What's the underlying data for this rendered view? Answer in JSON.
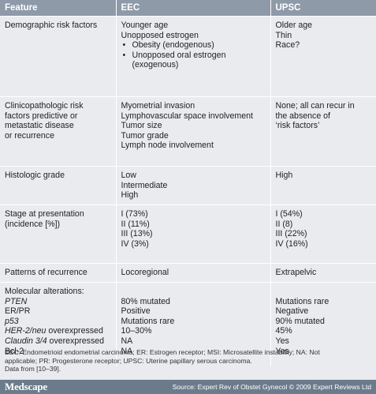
{
  "header": {
    "col1": "Feature",
    "col2": "EEC",
    "col3": "UPSC"
  },
  "rows": {
    "demographic": {
      "feature": "Demographic risk factors",
      "eec": {
        "l1": "Younger age",
        "l2": "Unopposed estrogen",
        "b1": "Obesity (endogenous)",
        "b2a": "Unopposed oral estrogen",
        "b2b": "(exogenous)"
      },
      "upsc": {
        "l1": "Older age",
        "l2": "Thin",
        "l3": "Race?"
      }
    },
    "clinicopathologic": {
      "feature": {
        "l1": "Clinicopathologic risk",
        "l2": "factors predictive or",
        "l3": "metastatic disease",
        "l4": "or recurrence"
      },
      "eec": {
        "l1": "Myometrial invasion",
        "l2": "Lymphovascular space involvement",
        "l3": "Tumor size",
        "l4": "Tumor grade",
        "l5": "Lymph node involvement"
      },
      "upsc": {
        "l1": "None; all can recur in",
        "l2": "the absence of",
        "l3": "‘risk factors’"
      }
    },
    "grade": {
      "feature": "Histologic grade",
      "eec": {
        "l1": "Low",
        "l2": "Intermediate",
        "l3": "High"
      },
      "upsc": {
        "l1": "High"
      }
    },
    "stage": {
      "feature": {
        "l1": "Stage at presentation",
        "l2": "(incidence [%])"
      },
      "eec": {
        "l1": "I (73%)",
        "l2": "II (11%)",
        "l3": "III (13%)",
        "l4": "IV (3%)"
      },
      "upsc": {
        "l1": "I (54%)",
        "l2": "II (8)",
        "l3": "III (22%)",
        "l4": "IV (16%)"
      }
    },
    "recurrence": {
      "feature": "Patterns of recurrence",
      "eec": "Locoregional",
      "upsc": "Extrapelvic"
    },
    "molecular": {
      "feature": {
        "title": "Molecular alterations:",
        "pten": "PTEN",
        "erpr": "ER/PR",
        "p53": "p53",
        "her2_it": "HER-2/neu",
        "her2_rest": " overexpressed",
        "cld_it": "Claudin 3/4",
        "cld_rest": " overexpressed",
        "bcl2": "Bcl-2"
      },
      "eec": {
        "pten": "80% mutated",
        "erpr": "Positive",
        "p53": "Mutations rare",
        "her2": "10–30%",
        "cld": "NA",
        "bcl2": "NA"
      },
      "upsc": {
        "pten": "Mutations rare",
        "erpr": "Negative",
        "p53": "90% mutated",
        "her2": "45%",
        "cld": "Yes",
        "bcl2": "Yes"
      }
    }
  },
  "footnote": {
    "l1": "EEC: Endometrioid endometrial carcinoma; ER: Estrogen receptor; MSI: Microsatellite instability; NA: Not",
    "l2": "applicable; PR: Progesterone receptor; UPSC: Uterine papillary serous carcinoma.",
    "l3": "Data from [10–39]."
  },
  "footer": {
    "logo": "Medscape",
    "source": "Source: Expert Rev of Obstet Gynecol © 2009 Expert Reviews Ltd"
  }
}
